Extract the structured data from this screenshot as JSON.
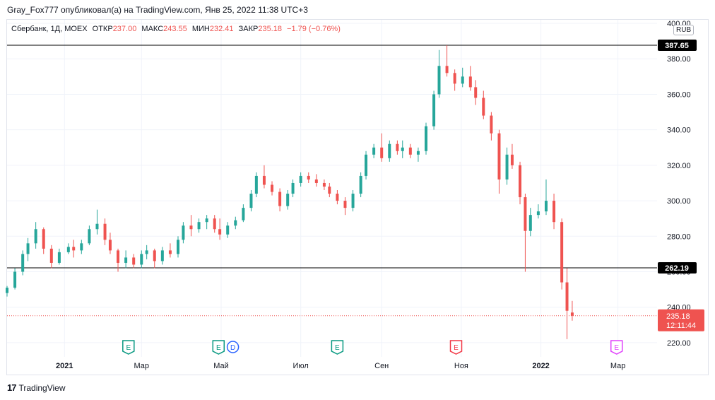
{
  "header": {
    "text": "Gray_Fox777 опубликовал(а) на TradingView.com, Янв 25, 2022 11:38 UTC+3"
  },
  "legend": {
    "symbol": "Сбербанк, 1Д, MOEX",
    "open_label": "ОТКР",
    "open": "237.00",
    "high_label": "МАКС",
    "high": "243.55",
    "low_label": "МИН",
    "low": "232.41",
    "close_label": "ЗАКР",
    "close": "235.18",
    "change": "−1.79 (−0.76%)"
  },
  "currency_badge": "RUB",
  "footer": {
    "brand": "TradingView",
    "logo_glyph": "17"
  },
  "colors": {
    "up": "#26a69a",
    "down": "#ef5350",
    "line": "#000000",
    "grid": "#f0f3fa",
    "last_price": "#ef5350"
  },
  "chart_data": {
    "type": "candlestick",
    "ylim": [
      212,
      402
    ],
    "x_range": [
      "2020-11-18",
      "2022-03-31"
    ],
    "y_ticks": [
      {
        "value": 220,
        "label": "220.00"
      },
      {
        "value": 240,
        "label": "240.00"
      },
      {
        "value": 260,
        "label": "260.00"
      },
      {
        "value": 280,
        "label": "280.00"
      },
      {
        "value": 300,
        "label": "300.00"
      },
      {
        "value": 320,
        "label": "320.00"
      },
      {
        "value": 340,
        "label": "340.00"
      },
      {
        "value": 360,
        "label": "360.00"
      },
      {
        "value": 380,
        "label": "380.00"
      },
      {
        "value": 400,
        "label": "400.00"
      }
    ],
    "x_ticks": [
      {
        "date": "2021-01-01",
        "label": "2021",
        "bold": true
      },
      {
        "date": "2021-03-01",
        "label": "Мар"
      },
      {
        "date": "2021-05-01",
        "label": "Май"
      },
      {
        "date": "2021-07-01",
        "label": "Июл"
      },
      {
        "date": "2021-09-01",
        "label": "Сен"
      },
      {
        "date": "2021-11-01",
        "label": "Ноя"
      },
      {
        "date": "2022-01-01",
        "label": "2022",
        "bold": true
      },
      {
        "date": "2022-03-01",
        "label": "Мар"
      }
    ],
    "horizontal_lines": [
      {
        "value": 387.65,
        "label": "387.65"
      },
      {
        "value": 262.19,
        "label": "262.19"
      }
    ],
    "last_price": {
      "value": 235.18,
      "label": "235.18",
      "countdown": "12:11:44"
    },
    "events": [
      {
        "date": "2021-02-19",
        "letter": "E",
        "color": "#089981"
      },
      {
        "date": "2021-04-29",
        "letter": "E",
        "color": "#089981"
      },
      {
        "date": "2021-05-10",
        "letter": "D",
        "color": "#2962ff"
      },
      {
        "date": "2021-07-29",
        "letter": "E",
        "color": "#089981"
      },
      {
        "date": "2021-10-28",
        "letter": "E",
        "color": "#f23645"
      },
      {
        "date": "2022-02-28",
        "letter": "E",
        "color": "#e040fb"
      }
    ],
    "ohlc": [
      [
        "2020-11-18",
        248,
        252,
        246,
        251
      ],
      [
        "2020-11-24",
        251,
        262,
        250,
        260
      ],
      [
        "2020-11-30",
        260,
        272,
        258,
        270
      ],
      [
        "2020-12-04",
        270,
        279,
        266,
        276
      ],
      [
        "2020-12-10",
        276,
        288,
        273,
        284
      ],
      [
        "2020-12-16",
        284,
        285,
        270,
        273
      ],
      [
        "2020-12-22",
        273,
        275,
        262,
        265
      ],
      [
        "2020-12-28",
        265,
        273,
        264,
        271
      ],
      [
        "2021-01-04",
        271,
        276,
        270,
        274
      ],
      [
        "2021-01-08",
        274,
        278,
        268,
        272
      ],
      [
        "2021-01-14",
        272,
        278,
        270,
        276
      ],
      [
        "2021-01-20",
        276,
        286,
        275,
        284
      ],
      [
        "2021-01-26",
        284,
        295,
        281,
        287
      ],
      [
        "2021-02-01",
        287,
        290,
        275,
        278
      ],
      [
        "2021-02-05",
        278,
        282,
        270,
        272
      ],
      [
        "2021-02-11",
        272,
        273,
        260,
        265
      ],
      [
        "2021-02-17",
        265,
        272,
        262,
        268
      ],
      [
        "2021-02-23",
        268,
        270,
        262,
        264
      ],
      [
        "2021-03-01",
        264,
        272,
        262,
        270
      ],
      [
        "2021-03-05",
        270,
        275,
        267,
        272
      ],
      [
        "2021-03-11",
        272,
        273,
        262,
        266
      ],
      [
        "2021-03-17",
        266,
        274,
        264,
        272
      ],
      [
        "2021-03-23",
        272,
        276,
        268,
        270
      ],
      [
        "2021-03-29",
        270,
        280,
        268,
        278
      ],
      [
        "2021-04-02",
        278,
        288,
        276,
        286
      ],
      [
        "2021-04-08",
        286,
        292,
        280,
        284
      ],
      [
        "2021-04-14",
        284,
        290,
        282,
        288
      ],
      [
        "2021-04-20",
        288,
        292,
        284,
        290
      ],
      [
        "2021-04-26",
        290,
        292,
        282,
        284
      ],
      [
        "2021-04-30",
        284,
        290,
        278,
        281
      ],
      [
        "2021-05-06",
        281,
        288,
        279,
        286
      ],
      [
        "2021-05-12",
        286,
        291,
        284,
        289
      ],
      [
        "2021-05-18",
        289,
        298,
        288,
        296
      ],
      [
        "2021-05-24",
        296,
        306,
        294,
        304
      ],
      [
        "2021-05-28",
        304,
        316,
        302,
        314
      ],
      [
        "2021-06-03",
        314,
        320,
        307,
        309
      ],
      [
        "2021-06-09",
        309,
        311,
        303,
        305
      ],
      [
        "2021-06-15",
        305,
        307,
        294,
        297
      ],
      [
        "2021-06-21",
        297,
        306,
        295,
        304
      ],
      [
        "2021-06-25",
        304,
        312,
        302,
        310
      ],
      [
        "2021-07-01",
        310,
        316,
        308,
        314
      ],
      [
        "2021-07-07",
        314,
        316,
        310,
        312
      ],
      [
        "2021-07-13",
        312,
        315,
        308,
        310
      ],
      [
        "2021-07-19",
        310,
        312,
        306,
        308
      ],
      [
        "2021-07-23",
        308,
        310,
        302,
        304
      ],
      [
        "2021-07-29",
        304,
        306,
        298,
        300
      ],
      [
        "2021-08-04",
        300,
        302,
        292,
        296
      ],
      [
        "2021-08-10",
        296,
        306,
        294,
        304
      ],
      [
        "2021-08-16",
        304,
        316,
        302,
        314
      ],
      [
        "2021-08-20",
        314,
        328,
        312,
        326
      ],
      [
        "2021-08-26",
        326,
        332,
        324,
        330
      ],
      [
        "2021-09-01",
        330,
        338,
        322,
        324
      ],
      [
        "2021-09-07",
        324,
        334,
        322,
        332
      ],
      [
        "2021-09-13",
        332,
        334,
        326,
        328
      ],
      [
        "2021-09-17",
        328,
        334,
        324,
        330
      ],
      [
        "2021-09-23",
        330,
        332,
        324,
        326
      ],
      [
        "2021-09-29",
        326,
        330,
        322,
        328
      ],
      [
        "2021-10-05",
        328,
        344,
        326,
        342
      ],
      [
        "2021-10-11",
        342,
        362,
        340,
        360
      ],
      [
        "2021-10-15",
        360,
        385,
        358,
        376
      ],
      [
        "2021-10-21",
        376,
        387.65,
        370,
        372
      ],
      [
        "2021-10-27",
        372,
        374,
        362,
        366
      ],
      [
        "2021-11-02",
        366,
        375,
        364,
        370
      ],
      [
        "2021-11-08",
        370,
        376,
        362,
        364
      ],
      [
        "2021-11-12",
        364,
        368,
        354,
        358
      ],
      [
        "2021-11-18",
        358,
        362,
        346,
        348
      ],
      [
        "2021-11-24",
        348,
        350,
        334,
        338
      ],
      [
        "2021-11-30",
        338,
        340,
        304,
        312
      ],
      [
        "2021-12-06",
        312,
        330,
        309,
        326
      ],
      [
        "2021-12-10",
        326,
        332,
        318,
        320
      ],
      [
        "2021-12-16",
        320,
        322,
        298,
        302
      ],
      [
        "2021-12-20",
        302,
        304,
        260,
        283
      ],
      [
        "2021-12-24",
        283,
        296,
        280,
        292
      ],
      [
        "2021-12-30",
        292,
        298,
        290,
        294
      ],
      [
        "2022-01-05",
        294,
        312,
        292,
        300
      ],
      [
        "2022-01-11",
        300,
        304,
        284,
        288
      ],
      [
        "2022-01-17",
        288,
        290,
        250,
        254
      ],
      [
        "2022-01-21",
        254,
        262,
        222,
        238
      ],
      [
        "2022-01-25",
        237.0,
        243.55,
        232.41,
        235.18
      ]
    ]
  }
}
